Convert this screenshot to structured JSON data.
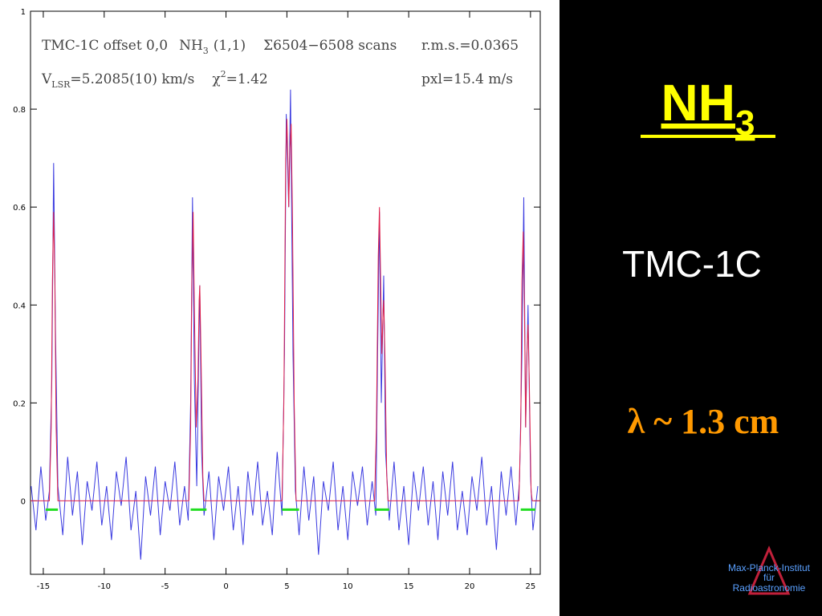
{
  "slide": {
    "title": "NH",
    "title_sub": "3",
    "subtitle": "TMC-1C",
    "wavelength": "λ  ~  1.3 cm",
    "logo": [
      "Max-Planck-Institut",
      "für",
      "Radioastronomie"
    ]
  },
  "chart_data": {
    "type": "line",
    "annotations": [
      "TMC-1C offset 0,0",
      "NH",
      "3",
      "(1,1)",
      "Σ6504−6508 scans",
      "r.m.s.=0.0365",
      "V",
      "LSR",
      "=5.2085(10) km/s",
      "χ",
      "2",
      "=1.42",
      "pxl=15.4 m/s"
    ],
    "xlim": [
      -16.05,
      25.8
    ],
    "ylim": [
      -0.15,
      1
    ],
    "xticks": [
      -15,
      -10,
      -5,
      0,
      5,
      10,
      15,
      20,
      25
    ],
    "yticks": [
      0,
      0.2,
      0.4,
      0.6,
      0.8,
      1
    ],
    "series": [
      {
        "color": "#3a3ae0",
        "x": [
          -16.0,
          -15.6,
          -15.2,
          -14.8,
          -14.5,
          -14.3,
          -14.15,
          -14.0,
          -13.8,
          -13.4,
          -13.0,
          -12.6,
          -12.2,
          -11.8,
          -11.4,
          -11.0,
          -10.6,
          -10.2,
          -9.8,
          -9.4,
          -9.0,
          -8.6,
          -8.2,
          -7.8,
          -7.4,
          -7.0,
          -6.6,
          -6.2,
          -5.8,
          -5.4,
          -5.0,
          -4.6,
          -4.2,
          -3.8,
          -3.4,
          -3.1,
          -2.9,
          -2.75,
          -2.6,
          -2.4,
          -2.15,
          -2.0,
          -1.8,
          -1.4,
          -1.0,
          -0.6,
          -0.2,
          0.2,
          0.6,
          1.0,
          1.4,
          1.8,
          2.2,
          2.6,
          3.0,
          3.4,
          3.8,
          4.2,
          4.6,
          4.8,
          4.95,
          5.15,
          5.3,
          5.5,
          5.7,
          6.0,
          6.4,
          6.8,
          7.2,
          7.6,
          8.0,
          8.4,
          8.8,
          9.2,
          9.6,
          10.0,
          10.4,
          10.8,
          11.2,
          11.6,
          12.0,
          12.3,
          12.45,
          12.6,
          12.75,
          12.95,
          13.1,
          13.4,
          13.8,
          14.2,
          14.6,
          15.0,
          15.4,
          15.8,
          16.2,
          16.6,
          17.0,
          17.4,
          17.8,
          18.2,
          18.6,
          19.0,
          19.4,
          19.8,
          20.2,
          20.6,
          21.0,
          21.4,
          21.8,
          22.2,
          22.6,
          23.0,
          23.4,
          23.8,
          24.1,
          24.3,
          24.45,
          24.6,
          24.8,
          25.0,
          25.2,
          25.6
        ],
        "values": [
          0.03,
          -0.06,
          0.07,
          -0.04,
          0.02,
          0.25,
          0.69,
          0.35,
          0.03,
          -0.07,
          0.09,
          -0.03,
          0.06,
          -0.09,
          0.04,
          -0.02,
          0.08,
          -0.05,
          0.03,
          -0.08,
          0.06,
          -0.01,
          0.09,
          -0.06,
          0.02,
          -0.12,
          0.05,
          -0.03,
          0.07,
          -0.07,
          0.04,
          -0.02,
          0.08,
          -0.05,
          0.03,
          -0.04,
          0.2,
          0.62,
          0.25,
          0.03,
          0.44,
          0.1,
          -0.03,
          0.06,
          -0.08,
          0.05,
          -0.02,
          0.07,
          -0.06,
          0.03,
          -0.09,
          0.06,
          -0.03,
          0.08,
          -0.05,
          0.02,
          -0.07,
          0.1,
          -0.03,
          0.3,
          0.79,
          0.6,
          0.84,
          0.3,
          0.02,
          -0.07,
          0.07,
          -0.04,
          0.05,
          -0.11,
          0.04,
          -0.02,
          0.08,
          -0.06,
          0.03,
          -0.08,
          0.06,
          -0.01,
          0.07,
          -0.05,
          0.04,
          -0.03,
          0.3,
          0.59,
          0.2,
          0.46,
          0.1,
          -0.04,
          0.08,
          -0.06,
          0.03,
          -0.09,
          0.06,
          -0.02,
          0.07,
          -0.05,
          0.04,
          -0.08,
          0.06,
          -0.03,
          0.08,
          -0.06,
          0.02,
          -0.07,
          0.05,
          -0.02,
          0.09,
          -0.05,
          0.03,
          -0.1,
          0.06,
          -0.03,
          0.07,
          -0.05,
          0.04,
          0.3,
          0.62,
          0.15,
          0.4,
          0.05,
          -0.06,
          0.03
        ]
      },
      {
        "color": "#e0204a",
        "x": [
          -16.05,
          -14.5,
          -14.35,
          -14.25,
          -14.15,
          -14.05,
          -13.95,
          -13.8,
          -3.05,
          -2.9,
          -2.8,
          -2.7,
          -2.6,
          -2.45,
          -2.3,
          -2.2,
          -2.15,
          -2.05,
          -1.9,
          -1.8,
          4.6,
          4.75,
          4.9,
          5.0,
          5.1,
          5.15,
          5.25,
          5.35,
          5.45,
          5.6,
          5.75,
          12.2,
          12.35,
          12.5,
          12.6,
          12.7,
          12.8,
          12.9,
          12.95,
          13.05,
          13.2,
          13.3,
          24.05,
          24.2,
          24.3,
          24.4,
          24.5,
          24.6,
          24.7,
          24.8,
          24.9,
          25.05,
          25.15,
          25.8
        ],
        "values": [
          0,
          0,
          0.15,
          0.45,
          0.59,
          0.45,
          0.15,
          0,
          0,
          0.15,
          0.45,
          0.59,
          0.4,
          0.15,
          0.25,
          0.41,
          0.44,
          0.3,
          0.05,
          0,
          0,
          0.2,
          0.7,
          0.78,
          0.68,
          0.6,
          0.72,
          0.77,
          0.6,
          0.2,
          0,
          0,
          0.15,
          0.5,
          0.6,
          0.45,
          0.3,
          0.39,
          0.41,
          0.3,
          0.05,
          0,
          0,
          0.15,
          0.45,
          0.55,
          0.4,
          0.15,
          0.3,
          0.36,
          0.25,
          0.02,
          0,
          0
        ]
      }
    ],
    "windows": {
      "color": "#22dd22",
      "level": -0.018,
      "ranges": [
        [
          -14.8,
          -13.8
        ],
        [
          -2.9,
          -1.6
        ],
        [
          4.6,
          6.0
        ],
        [
          12.2,
          13.4
        ],
        [
          24.2,
          25.4
        ]
      ]
    }
  }
}
